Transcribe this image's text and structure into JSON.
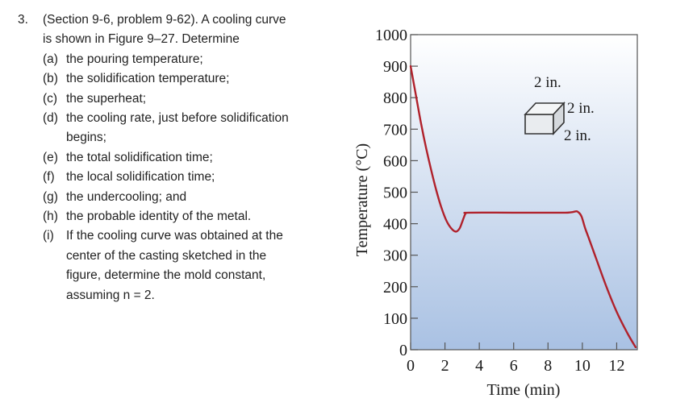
{
  "problem": {
    "number": "3.",
    "intro_line1": "(Section 9-6, problem 9-62).   A cooling curve",
    "intro_line2": "is shown in Figure 9–27. Determine",
    "parts": [
      {
        "label": "(a)",
        "lines": [
          "the pouring temperature;"
        ]
      },
      {
        "label": "(b)",
        "lines": [
          "the solidification temperature;"
        ]
      },
      {
        "label": "(c)",
        "lines": [
          "the superheat;"
        ]
      },
      {
        "label": "(d)",
        "lines": [
          "the cooling rate, just before solidification",
          "begins;"
        ]
      },
      {
        "label": "(e)",
        "lines": [
          "the total solidification time;"
        ]
      },
      {
        "label": "(f)",
        "lines": [
          "the local solidification time;"
        ]
      },
      {
        "label": "(g)",
        "lines": [
          "the undercooling; and"
        ]
      },
      {
        "label": "(h)",
        "lines": [
          "the probable identity of the metal."
        ]
      },
      {
        "label": "(i)",
        "lines": [
          "If the cooling curve was obtained at the",
          "center of the casting sketched in the",
          "figure, determine the mold constant,",
          "assuming n = 2."
        ]
      }
    ]
  },
  "chart_data": {
    "type": "line",
    "title": "",
    "xlabel": "Time (min)",
    "ylabel": "Temperature (°C)",
    "xlim": [
      0,
      13.2
    ],
    "ylim": [
      0,
      1000
    ],
    "xticks": [
      0,
      2,
      4,
      6,
      8,
      10,
      12
    ],
    "yticks": [
      0,
      100,
      200,
      300,
      400,
      500,
      600,
      700,
      800,
      900,
      1000
    ],
    "grid": false,
    "series": [
      {
        "name": "cooling curve",
        "color": "#b0212b",
        "x": [
          0,
          0.3,
          0.6,
          0.9,
          1.2,
          1.5,
          1.8,
          2.1,
          2.4,
          2.65,
          2.85,
          3.0,
          3.1,
          3.2,
          3.4,
          6.0,
          9.0,
          9.8,
          10.2,
          10.8,
          11.4,
          12.0,
          12.6,
          13.1
        ],
        "y": [
          900,
          810,
          720,
          640,
          570,
          505,
          450,
          408,
          383,
          375,
          385,
          405,
          420,
          432,
          435,
          435,
          435,
          435,
          380,
          290,
          200,
          120,
          55,
          8
        ]
      }
    ],
    "inset": {
      "label": "2 in. cube casting sketch",
      "dims": [
        "2 in.",
        "2 in.",
        "2 in."
      ]
    },
    "colors": {
      "background_top": "#ffffff",
      "background_bottom": "#a9c1e3",
      "axis": "#555555",
      "curve": "#b0212b",
      "cube_face": "#e9ecef",
      "cube_edge": "#333333"
    }
  }
}
